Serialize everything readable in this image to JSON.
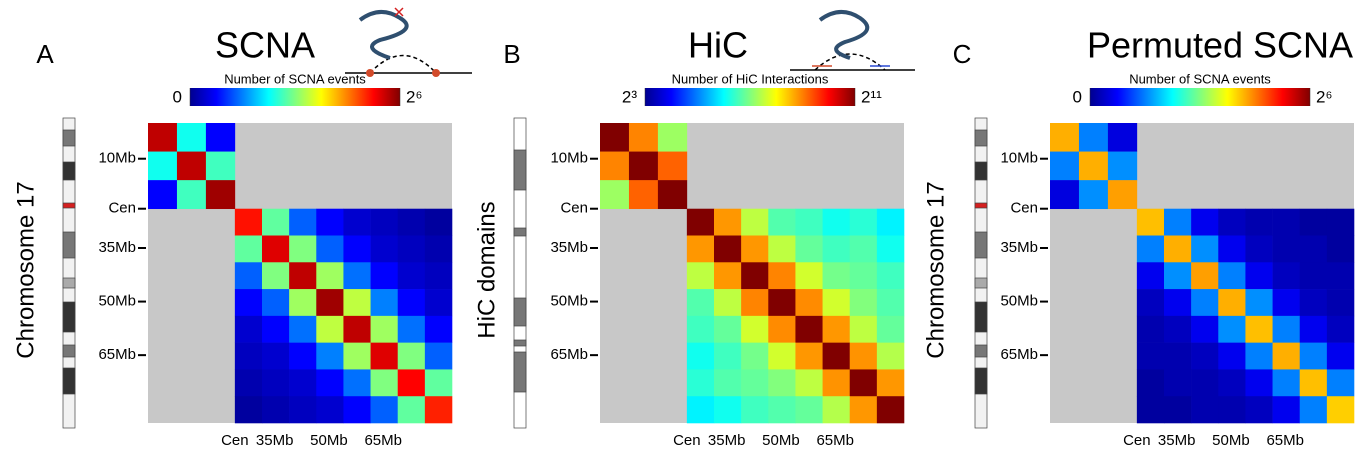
{
  "chart_data": [
    {
      "type": "heatmap",
      "panel_label": "A",
      "title": "SCNA",
      "colorbar_title": "Number of SCNA events",
      "ylabel": "Chromosome 17",
      "clim": [
        0,
        64
      ],
      "cticks": [
        0,
        {
          "value": 64,
          "label": "2⁶"
        }
      ],
      "log_color": false,
      "lim": [
        0,
        84
      ],
      "ticks": [
        {
          "value": 10,
          "label": "10Mb"
        },
        {
          "value": 24,
          "label": "Cen"
        },
        {
          "value": 35,
          "label": "35Mb"
        },
        {
          "value": 50,
          "label": "50Mb"
        },
        {
          "value": 65,
          "label": "65Mb"
        }
      ],
      "bins": [
        0,
        8,
        16,
        24,
        31.5,
        39,
        46.5,
        54,
        61.5,
        69,
        76.5,
        84
      ],
      "values": [
        [
          60,
          25,
          8,
          null,
          null,
          null,
          null,
          null,
          null,
          null,
          null
        ],
        [
          25,
          60,
          28,
          null,
          null,
          null,
          null,
          null,
          null,
          null,
          null
        ],
        [
          8,
          28,
          62,
          null,
          null,
          null,
          null,
          null,
          null,
          null,
          null
        ],
        [
          null,
          null,
          null,
          55,
          30,
          14,
          8,
          5,
          4,
          3,
          2
        ],
        [
          null,
          null,
          null,
          30,
          58,
          32,
          14,
          8,
          5,
          4,
          3
        ],
        [
          null,
          null,
          null,
          14,
          32,
          60,
          34,
          15,
          8,
          5,
          4
        ],
        [
          null,
          null,
          null,
          8,
          14,
          34,
          62,
          36,
          16,
          8,
          5
        ],
        [
          null,
          null,
          null,
          5,
          8,
          15,
          36,
          60,
          34,
          15,
          8
        ],
        [
          null,
          null,
          null,
          4,
          5,
          8,
          16,
          34,
          58,
          32,
          14
        ],
        [
          null,
          null,
          null,
          3,
          4,
          5,
          8,
          15,
          32,
          56,
          30
        ],
        [
          null,
          null,
          null,
          2,
          3,
          4,
          5,
          8,
          14,
          30,
          54
        ]
      ]
    },
    {
      "type": "heatmap",
      "panel_label": "B",
      "title": "HiC",
      "colorbar_title": "Number of HiC Interactions",
      "ylabel": "HiC domains",
      "clim": [
        8,
        2048
      ],
      "cticks": [
        {
          "value": 8,
          "label": "2³"
        },
        {
          "value": 2048,
          "label": "2¹¹"
        }
      ],
      "log_color": true,
      "lim": [
        0,
        84
      ],
      "ticks": [
        {
          "value": 10,
          "label": "10Mb"
        },
        {
          "value": 24,
          "label": "Cen"
        },
        {
          "value": 35,
          "label": "35Mb"
        },
        {
          "value": 50,
          "label": "50Mb"
        },
        {
          "value": 65,
          "label": "65Mb"
        }
      ],
      "bins": [
        0,
        8,
        16,
        24,
        31.5,
        39,
        46.5,
        54,
        61.5,
        69,
        76.5,
        84
      ],
      "values": [
        [
          2048,
          500,
          150,
          null,
          null,
          null,
          null,
          null,
          null,
          null,
          null
        ],
        [
          500,
          2048,
          600,
          null,
          null,
          null,
          null,
          null,
          null,
          null,
          null
        ],
        [
          150,
          600,
          2048,
          null,
          null,
          null,
          null,
          null,
          null,
          null,
          null
        ],
        [
          null,
          null,
          null,
          2048,
          450,
          180,
          100,
          90,
          70,
          80,
          60
        ],
        [
          null,
          null,
          null,
          450,
          2048,
          450,
          180,
          110,
          90,
          100,
          70
        ],
        [
          null,
          null,
          null,
          180,
          450,
          2048,
          500,
          200,
          120,
          110,
          90
        ],
        [
          null,
          null,
          null,
          100,
          180,
          500,
          2048,
          480,
          200,
          130,
          100
        ],
        [
          null,
          null,
          null,
          90,
          110,
          200,
          480,
          2048,
          450,
          180,
          110
        ],
        [
          null,
          null,
          null,
          70,
          90,
          120,
          200,
          450,
          2048,
          460,
          170
        ],
        [
          null,
          null,
          null,
          80,
          100,
          110,
          130,
          180,
          460,
          2048,
          450
        ],
        [
          null,
          null,
          null,
          60,
          70,
          90,
          100,
          110,
          170,
          450,
          2048
        ]
      ]
    },
    {
      "type": "heatmap",
      "panel_label": "C",
      "title": "Permuted SCNA",
      "colorbar_title": "Number of SCNA events",
      "ylabel": "Chromosome 17",
      "clim": [
        0,
        64
      ],
      "cticks": [
        0,
        {
          "value": 64,
          "label": "2⁶"
        }
      ],
      "log_color": false,
      "lim": [
        0,
        84
      ],
      "ticks": [
        {
          "value": 10,
          "label": "10Mb"
        },
        {
          "value": 24,
          "label": "Cen"
        },
        {
          "value": 35,
          "label": "35Mb"
        },
        {
          "value": 50,
          "label": "50Mb"
        },
        {
          "value": 65,
          "label": "65Mb"
        }
      ],
      "bins": [
        0,
        8,
        16,
        24,
        31.5,
        39,
        46.5,
        54,
        61.5,
        69,
        76.5,
        84
      ],
      "values": [
        [
          45,
          16,
          6,
          null,
          null,
          null,
          null,
          null,
          null,
          null,
          null
        ],
        [
          16,
          45,
          17,
          null,
          null,
          null,
          null,
          null,
          null,
          null,
          null
        ],
        [
          6,
          17,
          46,
          null,
          null,
          null,
          null,
          null,
          null,
          null,
          null
        ],
        [
          null,
          null,
          null,
          44,
          16,
          7,
          4,
          3,
          3,
          2,
          2
        ],
        [
          null,
          null,
          null,
          16,
          45,
          17,
          7,
          4,
          3,
          3,
          2
        ],
        [
          null,
          null,
          null,
          7,
          17,
          46,
          16,
          7,
          4,
          3,
          3
        ],
        [
          null,
          null,
          null,
          4,
          7,
          16,
          45,
          17,
          7,
          4,
          3
        ],
        [
          null,
          null,
          null,
          3,
          4,
          7,
          17,
          44,
          16,
          7,
          4
        ],
        [
          null,
          null,
          null,
          3,
          3,
          4,
          7,
          16,
          45,
          16,
          7
        ],
        [
          null,
          null,
          null,
          2,
          3,
          3,
          4,
          7,
          16,
          44,
          16
        ],
        [
          null,
          null,
          null,
          2,
          2,
          3,
          3,
          4,
          7,
          16,
          43
        ]
      ]
    }
  ]
}
